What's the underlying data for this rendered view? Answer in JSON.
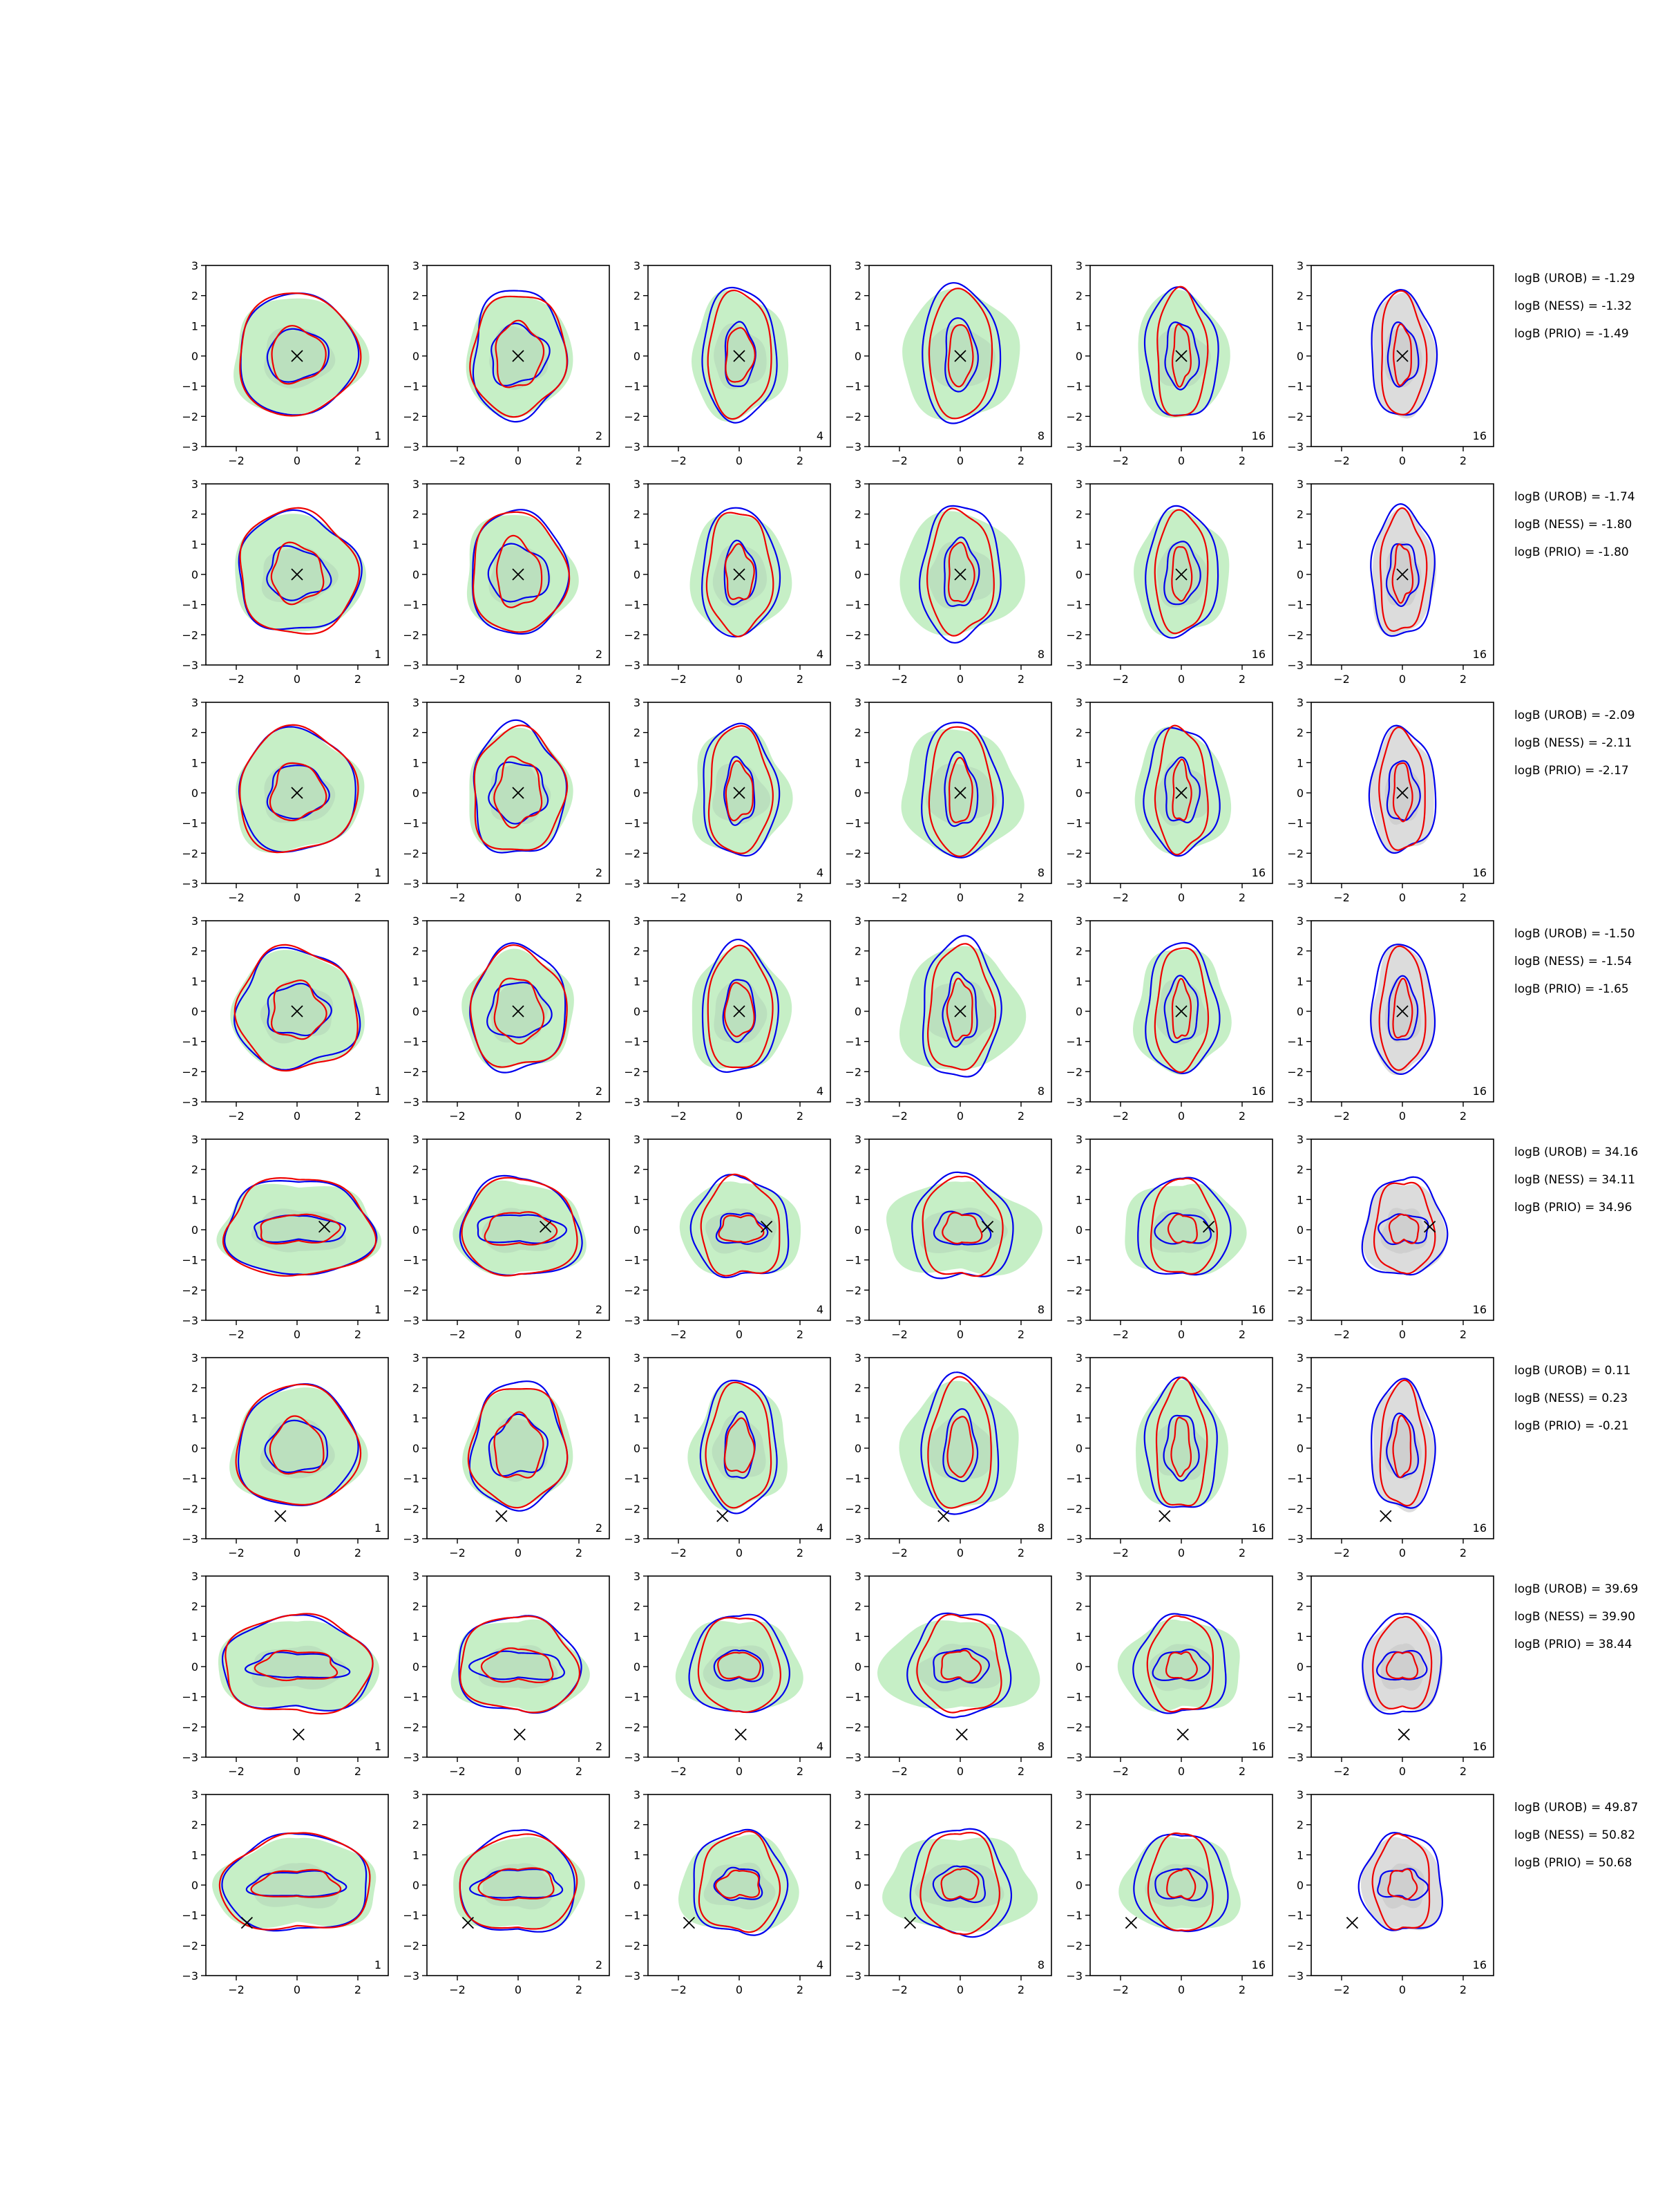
{
  "chart_data": {
    "type": "contour-grid",
    "xlim": [
      -3,
      3
    ],
    "ylim": [
      -3,
      3
    ],
    "xticks": [
      -2,
      0,
      2
    ],
    "yticks": [
      -3,
      -2,
      -1,
      0,
      1,
      2,
      3
    ],
    "xtick_labels": [
      "−2",
      "0",
      "2"
    ],
    "ytick_labels": [
      "−3",
      "−2",
      "−1",
      "0",
      "1",
      "2",
      "3"
    ],
    "colors": {
      "blue": "#0000ee",
      "red": "#ee0000",
      "green_fill": "#c6efc6",
      "grey_fill": "#dcdcdc",
      "marker": "#000000"
    },
    "column_labels": [
      "1",
      "2",
      "4",
      "8",
      "16",
      "16"
    ],
    "rows": [
      {
        "truth": [
          0,
          0
        ],
        "shape": "round",
        "logB": [
          "logB (UROB) = -1.29",
          "logB (NESS) = -1.32",
          "logB (PRIO) = -1.49"
        ]
      },
      {
        "truth": [
          0,
          0
        ],
        "shape": "round",
        "logB": [
          "logB (UROB) = -1.74",
          "logB (NESS) = -1.80",
          "logB (PRIO) = -1.80"
        ]
      },
      {
        "truth": [
          0,
          0
        ],
        "shape": "round",
        "logB": [
          "logB (UROB) = -2.09",
          "logB (NESS) = -2.11",
          "logB (PRIO) = -2.17"
        ]
      },
      {
        "truth": [
          0,
          0
        ],
        "shape": "round",
        "logB": [
          "logB (UROB) = -1.50",
          "logB (NESS) = -1.54",
          "logB (PRIO) = -1.65"
        ]
      },
      {
        "truth": [
          0.9,
          0.1
        ],
        "shape": "wide",
        "logB": [
          "logB (UROB) = 34.16",
          "logB (NESS) = 34.11",
          "logB (PRIO) = 34.96"
        ]
      },
      {
        "truth": [
          -0.55,
          -2.25
        ],
        "shape": "round",
        "logB": [
          "logB (UROB) = 0.11",
          "logB (NESS) = 0.23",
          "logB (PRIO) = -0.21"
        ]
      },
      {
        "truth": [
          0.05,
          -2.25
        ],
        "shape": "wide",
        "logB": [
          "logB (UROB) = 39.69",
          "logB (NESS) = 39.90",
          "logB (PRIO) = 38.44"
        ]
      },
      {
        "truth": [
          -1.65,
          -1.25
        ],
        "shape": "wide",
        "logB": [
          "logB (UROB) = 49.87",
          "logB (NESS) = 50.82",
          "logB (PRIO) = 50.68"
        ]
      }
    ],
    "columns": [
      {
        "label": "1",
        "fill": "green",
        "blue_outer": [
          1.95,
          2.0
        ],
        "blue_inner": [
          1.0,
          0.85
        ],
        "red_outer": [
          1.95,
          2.05
        ],
        "red_inner": [
          0.85,
          0.95
        ],
        "fill_r": [
          2.15,
          1.95
        ]
      },
      {
        "label": "2",
        "fill": "green",
        "blue_outer": [
          1.55,
          2.1
        ],
        "blue_inner": [
          0.95,
          0.95
        ],
        "red_outer": [
          1.55,
          2.0
        ],
        "red_inner": [
          0.75,
          1.1
        ],
        "fill_r": [
          1.75,
          2.0
        ]
      },
      {
        "label": "4",
        "fill": "green",
        "blue_outer": [
          1.25,
          2.15
        ],
        "blue_inner": [
          0.5,
          1.05
        ],
        "red_outer": [
          1.05,
          2.05
        ],
        "red_inner": [
          0.45,
          0.9
        ],
        "fill_r": [
          1.6,
          2.05
        ]
      },
      {
        "label": "8",
        "fill": "green",
        "blue_outer": [
          1.3,
          2.25
        ],
        "blue_inner": [
          0.55,
          1.15
        ],
        "red_outer": [
          1.05,
          2.1
        ],
        "red_inner": [
          0.4,
          1.0
        ],
        "fill_r": [
          2.0,
          2.05
        ]
      },
      {
        "label": "16",
        "fill": "green",
        "blue_outer": [
          1.2,
          2.1
        ],
        "blue_inner": [
          0.55,
          1.05
        ],
        "red_outer": [
          0.85,
          2.05
        ],
        "red_inner": [
          0.3,
          0.95
        ],
        "fill_r": [
          1.55,
          2.05
        ]
      },
      {
        "label": "16",
        "fill": "grey",
        "blue_outer": [
          1.05,
          2.1
        ],
        "blue_inner": [
          0.5,
          1.0
        ],
        "red_outer": [
          0.75,
          2.0
        ],
        "red_inner": [
          0.3,
          0.95
        ],
        "fill_r": [
          1.05,
          2.05
        ]
      }
    ]
  }
}
